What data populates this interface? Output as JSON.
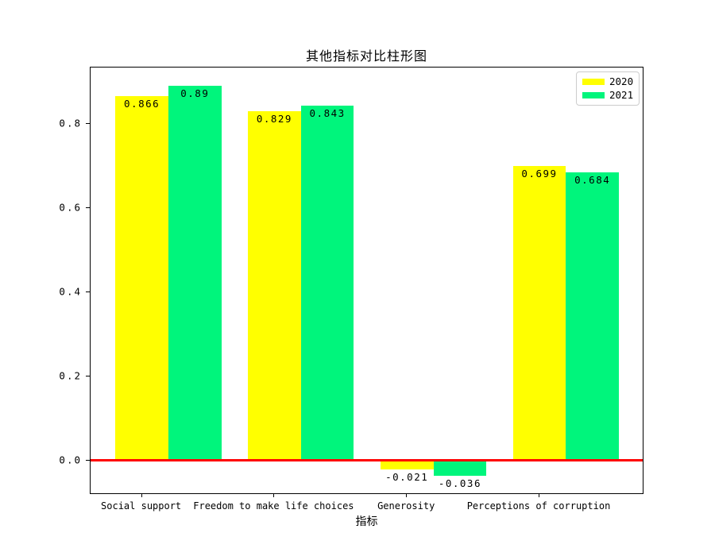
{
  "title": "其他指标对比柱形图",
  "xlabel": "指标",
  "legend": {
    "items": [
      {
        "label": "2020",
        "color": "#ffff00"
      },
      {
        "label": "2021",
        "color": "#00f57c"
      }
    ]
  },
  "chart_data": {
    "type": "bar",
    "title": "其他指标对比柱形图",
    "xlabel": "指标",
    "ylabel": "",
    "categories": [
      "Social support",
      "Freedom to make life choices",
      "Generosity",
      "Perceptions of corruption"
    ],
    "series": [
      {
        "name": "2020",
        "color": "#ffff00",
        "values": [
          0.866,
          0.829,
          -0.021,
          0.699
        ],
        "labels": [
          "0.866",
          "0.829",
          "-0.021",
          "0.699"
        ]
      },
      {
        "name": "2021",
        "color": "#00f57c",
        "values": [
          0.89,
          0.843,
          -0.036,
          0.684
        ],
        "labels": [
          "0.89",
          "0.843",
          "-0.036",
          "0.684"
        ]
      }
    ],
    "yticks": [
      "0.0",
      "0.2",
      "0.4",
      "0.6",
      "0.8"
    ],
    "ytick_values": [
      0.0,
      0.2,
      0.4,
      0.6,
      0.8
    ],
    "ylim": [
      -0.082,
      0.936
    ],
    "grid": false,
    "legend_position": "upper right",
    "zero_line_color": "#ff0000",
    "bar_label_color": "#000000"
  }
}
